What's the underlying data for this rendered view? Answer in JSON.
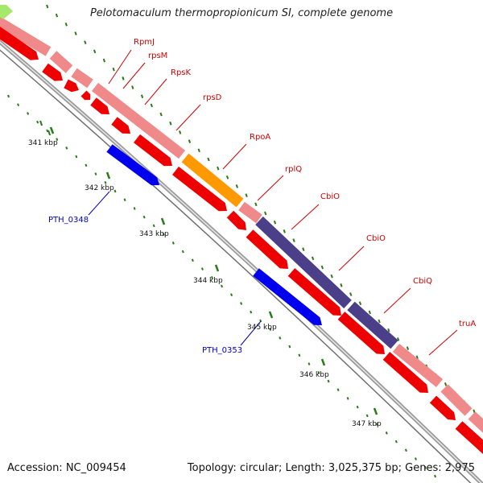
{
  "title": "Pelotomaculum thermopropionicum SI, complete genome",
  "footer": {
    "accession": "Accession: NC_009454",
    "stats": "Topology: circular; Length: 3,025,375 bp; Genes: 2,975"
  },
  "colors": {
    "background": "#ffffff",
    "backbone": "#8a8a8a",
    "cds_forward_pale": "#f08a8a",
    "cds_reverse_red": "#ee0000",
    "cds_orange": "#ff9900",
    "cds_navy": "#4a3f88",
    "cds_blue": "#0000ee",
    "cds_lightgreen": "#a6e86a",
    "tick_green": "#2a7a1a",
    "label_red": "#d40000",
    "label_blue": "#0000cc"
  },
  "kbp_marks": [
    {
      "label": "341 kbp"
    },
    {
      "label": "342 kbp"
    },
    {
      "label": "343 kbp"
    },
    {
      "label": "344 kbp"
    },
    {
      "label": "345 kbp"
    },
    {
      "label": "346 kbp"
    },
    {
      "label": "347 kbp"
    }
  ],
  "gene_labels": [
    {
      "label": "RpmJ",
      "color": "red"
    },
    {
      "label": "rpsM",
      "color": "red"
    },
    {
      "label": "RpsK",
      "color": "red"
    },
    {
      "label": "rpsD",
      "color": "red"
    },
    {
      "label": "RpoA",
      "color": "red"
    },
    {
      "label": "rplQ",
      "color": "red"
    },
    {
      "label": "CbiO",
      "color": "red"
    },
    {
      "label": "CbiO",
      "color": "red"
    },
    {
      "label": "CbiQ",
      "color": "red"
    },
    {
      "label": "truA",
      "color": "red"
    },
    {
      "label": "PTH_0348",
      "color": "blue"
    },
    {
      "label": "PTH_0353",
      "color": "blue"
    }
  ]
}
